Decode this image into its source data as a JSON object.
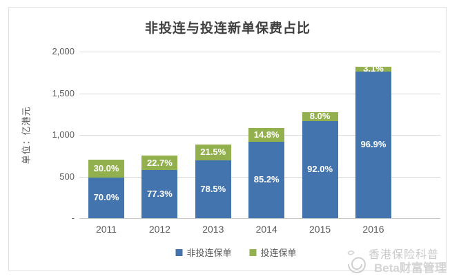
{
  "title": "非投连与投连新单保费占比",
  "y_axis": {
    "unit_label": "单位：亿港元",
    "tick_labels_top_to_bottom": [
      "2,000",
      "1,500",
      "1,000",
      "500",
      "-"
    ]
  },
  "legend": [
    {
      "label": "非投连保单",
      "color": "#4474ad"
    },
    {
      "label": "投连保单",
      "color": "#93b04f"
    }
  ],
  "watermark": {
    "line1": "香港保险科普",
    "line2": "Beta财富管理",
    "logo": "spiral-snail-icon",
    "color": "#cccccc"
  },
  "colors": {
    "bar_blue": "#4474ad",
    "bar_green": "#93b04f",
    "gridline": "#d9d9d9",
    "axis_text": "#595959",
    "title_text": "#3f3f3f",
    "card_border": "#e2e2e2",
    "bar_label_text": "#ffffff"
  },
  "chart_data": {
    "type": "bar",
    "stacked": true,
    "title": "非投连与投连新单保费占比",
    "categories": [
      "2011",
      "2012",
      "2013",
      "2014",
      "2015",
      "2016"
    ],
    "series": [
      {
        "name": "非投连保单",
        "color": "#4474ad",
        "pct": [
          70.0,
          77.3,
          78.5,
          85.2,
          92.0,
          96.9
        ],
        "labels": [
          "70.0%",
          "77.3%",
          "78.5%",
          "85.2%",
          "92.0%",
          "96.9%"
        ]
      },
      {
        "name": "投连保单",
        "color": "#93b04f",
        "pct": [
          30.0,
          22.7,
          21.5,
          14.8,
          8.0,
          3.1
        ],
        "labels": [
          "30.0%",
          "22.7%",
          "21.5%",
          "14.8%",
          "8.0%",
          "3.1%"
        ]
      }
    ],
    "totals_estimated": [
      700,
      750,
      885,
      1080,
      1270,
      1820
    ],
    "totals_unit": "亿港元",
    "ylabel": "单位：亿港元",
    "ylim": [
      0,
      2000
    ],
    "yticks": [
      0,
      500,
      1000,
      1500,
      2000
    ],
    "ytick_labels": [
      "-",
      "500",
      "1,000",
      "1,500",
      "2,000"
    ],
    "grid": true,
    "legend_position": "bottom"
  }
}
